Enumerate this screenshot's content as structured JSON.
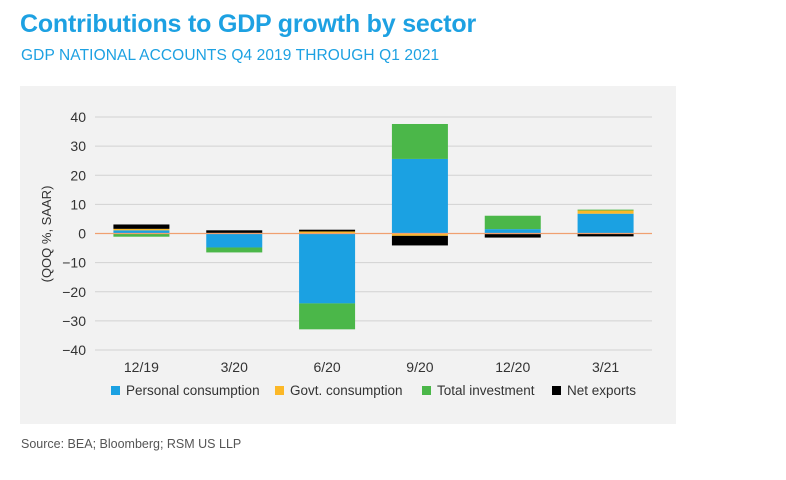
{
  "header": {
    "title": "Contributions to GDP growth by sector",
    "subtitle": "GDP NATIONAL ACCOUNTS Q4 2019 THROUGH Q1 2021"
  },
  "footer": {
    "source": "Source: BEA; Bloomberg; RSM US LLP"
  },
  "chart_data": {
    "type": "bar",
    "stacked": true,
    "title": "Contributions to GDP growth by sector",
    "subtitle": "GDP NATIONAL ACCOUNTS Q4 2019 THROUGH Q1 2021",
    "xlabel": "",
    "ylabel": "(QOQ %, SAAR)",
    "ylim": [
      -40,
      40
    ],
    "yticks": [
      40,
      30,
      20,
      10,
      0,
      -10,
      -20,
      -30,
      -40
    ],
    "ytick_labels": [
      "40",
      "30",
      "20",
      "10",
      "0",
      "−10",
      "−20",
      "−30",
      "−40"
    ],
    "grid": true,
    "legend_position": "bottom",
    "categories": [
      "12/19",
      "3/20",
      "6/20",
      "9/20",
      "12/20",
      "3/21"
    ],
    "series": [
      {
        "name": "Personal consumption",
        "color": "#1ba1e2",
        "values": [
          1.1,
          -4.8,
          -24.0,
          25.6,
          1.5,
          6.8
        ]
      },
      {
        "name": "Govt. consumption",
        "color": "#fcb827",
        "values": [
          0.5,
          0.2,
          0.7,
          -0.8,
          -0.2,
          1.1
        ]
      },
      {
        "name": "Total investment",
        "color": "#4bb749",
        "values": [
          -1.1,
          -1.7,
          -8.9,
          12.0,
          4.6,
          0.3
        ]
      },
      {
        "name": "Net exports",
        "color": "#000000",
        "values": [
          1.5,
          0.9,
          0.6,
          -3.3,
          -1.2,
          -1.0
        ]
      }
    ],
    "zero_line_color": "#f0a070"
  }
}
